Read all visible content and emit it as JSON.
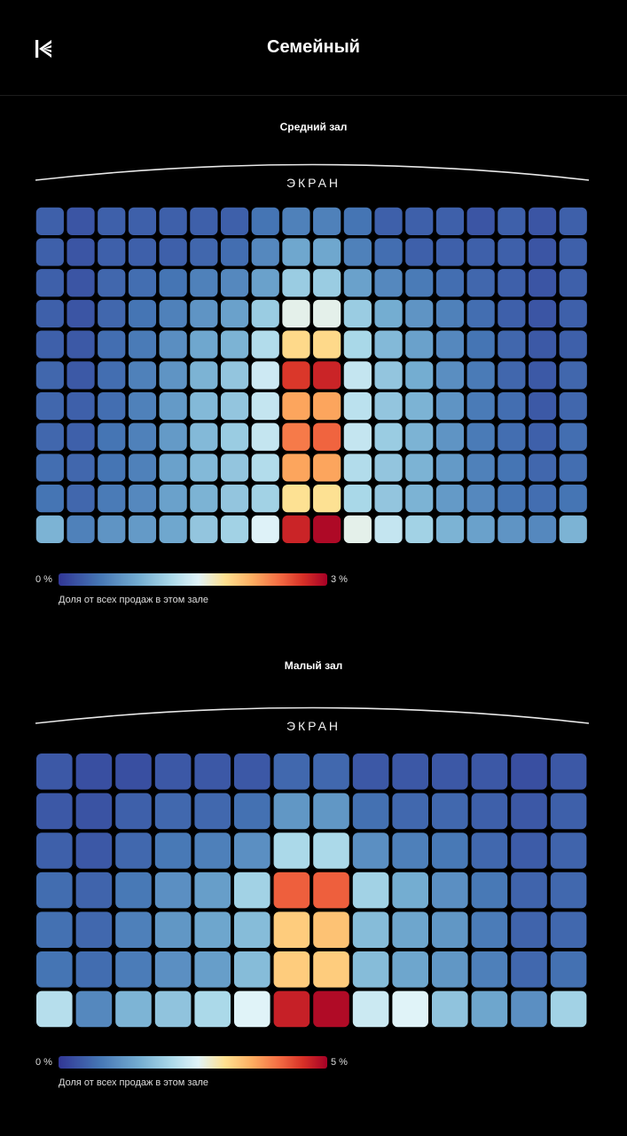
{
  "header": {
    "title": "Семейный"
  },
  "chart_data": [
    {
      "type": "heatmap",
      "title": "Средний зал",
      "screen_label": "ЭКРАН",
      "colorbar": {
        "min_label": "0 %",
        "max_label": "3 %",
        "caption": "Доля от всех продаж в этом зале",
        "min": 0,
        "max": 3
      },
      "rows": 11,
      "cols": 18,
      "values": [
        [
          0.3,
          0.22,
          0.3,
          0.3,
          0.3,
          0.3,
          0.3,
          0.45,
          0.55,
          0.55,
          0.45,
          0.3,
          0.3,
          0.3,
          0.22,
          0.3,
          0.22,
          0.3
        ],
        [
          0.3,
          0.22,
          0.3,
          0.3,
          0.3,
          0.35,
          0.4,
          0.6,
          0.85,
          0.85,
          0.55,
          0.4,
          0.3,
          0.3,
          0.3,
          0.3,
          0.22,
          0.3
        ],
        [
          0.3,
          0.22,
          0.35,
          0.4,
          0.45,
          0.55,
          0.6,
          0.8,
          1.15,
          1.15,
          0.8,
          0.6,
          0.5,
          0.4,
          0.35,
          0.3,
          0.22,
          0.3
        ],
        [
          0.3,
          0.22,
          0.35,
          0.45,
          0.55,
          0.7,
          0.8,
          1.15,
          1.6,
          1.6,
          1.15,
          0.9,
          0.7,
          0.55,
          0.4,
          0.3,
          0.22,
          0.3
        ],
        [
          0.3,
          0.25,
          0.4,
          0.5,
          0.65,
          0.85,
          0.95,
          1.3,
          1.9,
          1.9,
          1.25,
          1.0,
          0.8,
          0.6,
          0.45,
          0.35,
          0.25,
          0.3
        ],
        [
          0.35,
          0.25,
          0.4,
          0.55,
          0.7,
          0.95,
          1.1,
          1.45,
          2.7,
          2.8,
          1.4,
          1.1,
          0.9,
          0.65,
          0.5,
          0.35,
          0.25,
          0.35
        ],
        [
          0.35,
          0.3,
          0.4,
          0.55,
          0.75,
          1.0,
          1.1,
          1.4,
          2.2,
          2.2,
          1.35,
          1.1,
          0.95,
          0.7,
          0.5,
          0.4,
          0.25,
          0.35
        ],
        [
          0.35,
          0.3,
          0.45,
          0.55,
          0.75,
          1.0,
          1.15,
          1.4,
          2.4,
          2.5,
          1.4,
          1.15,
          0.95,
          0.7,
          0.5,
          0.4,
          0.3,
          0.4
        ],
        [
          0.4,
          0.35,
          0.45,
          0.55,
          0.8,
          1.0,
          1.1,
          1.3,
          2.2,
          2.2,
          1.3,
          1.1,
          0.95,
          0.75,
          0.55,
          0.45,
          0.35,
          0.4
        ],
        [
          0.45,
          0.35,
          0.5,
          0.6,
          0.8,
          0.95,
          1.1,
          1.2,
          1.85,
          1.85,
          1.25,
          1.1,
          0.95,
          0.75,
          0.6,
          0.45,
          0.4,
          0.45
        ],
        [
          0.95,
          0.55,
          0.7,
          0.75,
          0.85,
          1.1,
          1.2,
          1.55,
          2.8,
          2.95,
          1.6,
          1.4,
          1.2,
          0.95,
          0.8,
          0.7,
          0.6,
          0.95
        ]
      ]
    },
    {
      "type": "heatmap",
      "title": "Малый зал",
      "screen_label": "ЭКРАН",
      "colorbar": {
        "min_label": "0 %",
        "max_label": "5 %",
        "caption": "Доля от всех продаж в этом зале",
        "min": 0,
        "max": 5
      },
      "rows": 7,
      "cols": 14,
      "values": [
        [
          0.4,
          0.3,
          0.3,
          0.4,
          0.4,
          0.4,
          0.6,
          0.6,
          0.4,
          0.4,
          0.4,
          0.4,
          0.3,
          0.4
        ],
        [
          0.4,
          0.35,
          0.5,
          0.6,
          0.6,
          0.7,
          1.2,
          1.2,
          0.7,
          0.6,
          0.6,
          0.5,
          0.4,
          0.5
        ],
        [
          0.5,
          0.4,
          0.6,
          0.8,
          0.9,
          1.1,
          2.1,
          2.1,
          1.1,
          0.9,
          0.8,
          0.6,
          0.45,
          0.55
        ],
        [
          0.65,
          0.55,
          0.8,
          1.1,
          1.3,
          2.0,
          4.2,
          4.2,
          2.0,
          1.5,
          1.1,
          0.8,
          0.55,
          0.6
        ],
        [
          0.7,
          0.6,
          0.9,
          1.2,
          1.4,
          1.7,
          3.3,
          3.4,
          1.7,
          1.4,
          1.2,
          0.85,
          0.55,
          0.6
        ],
        [
          0.75,
          0.65,
          0.85,
          1.1,
          1.3,
          1.7,
          3.3,
          3.3,
          1.7,
          1.4,
          1.2,
          0.9,
          0.6,
          0.7
        ],
        [
          2.2,
          1.0,
          1.6,
          1.8,
          2.1,
          2.6,
          4.7,
          4.9,
          2.4,
          2.6,
          1.8,
          1.4,
          1.1,
          2.0
        ]
      ]
    }
  ]
}
